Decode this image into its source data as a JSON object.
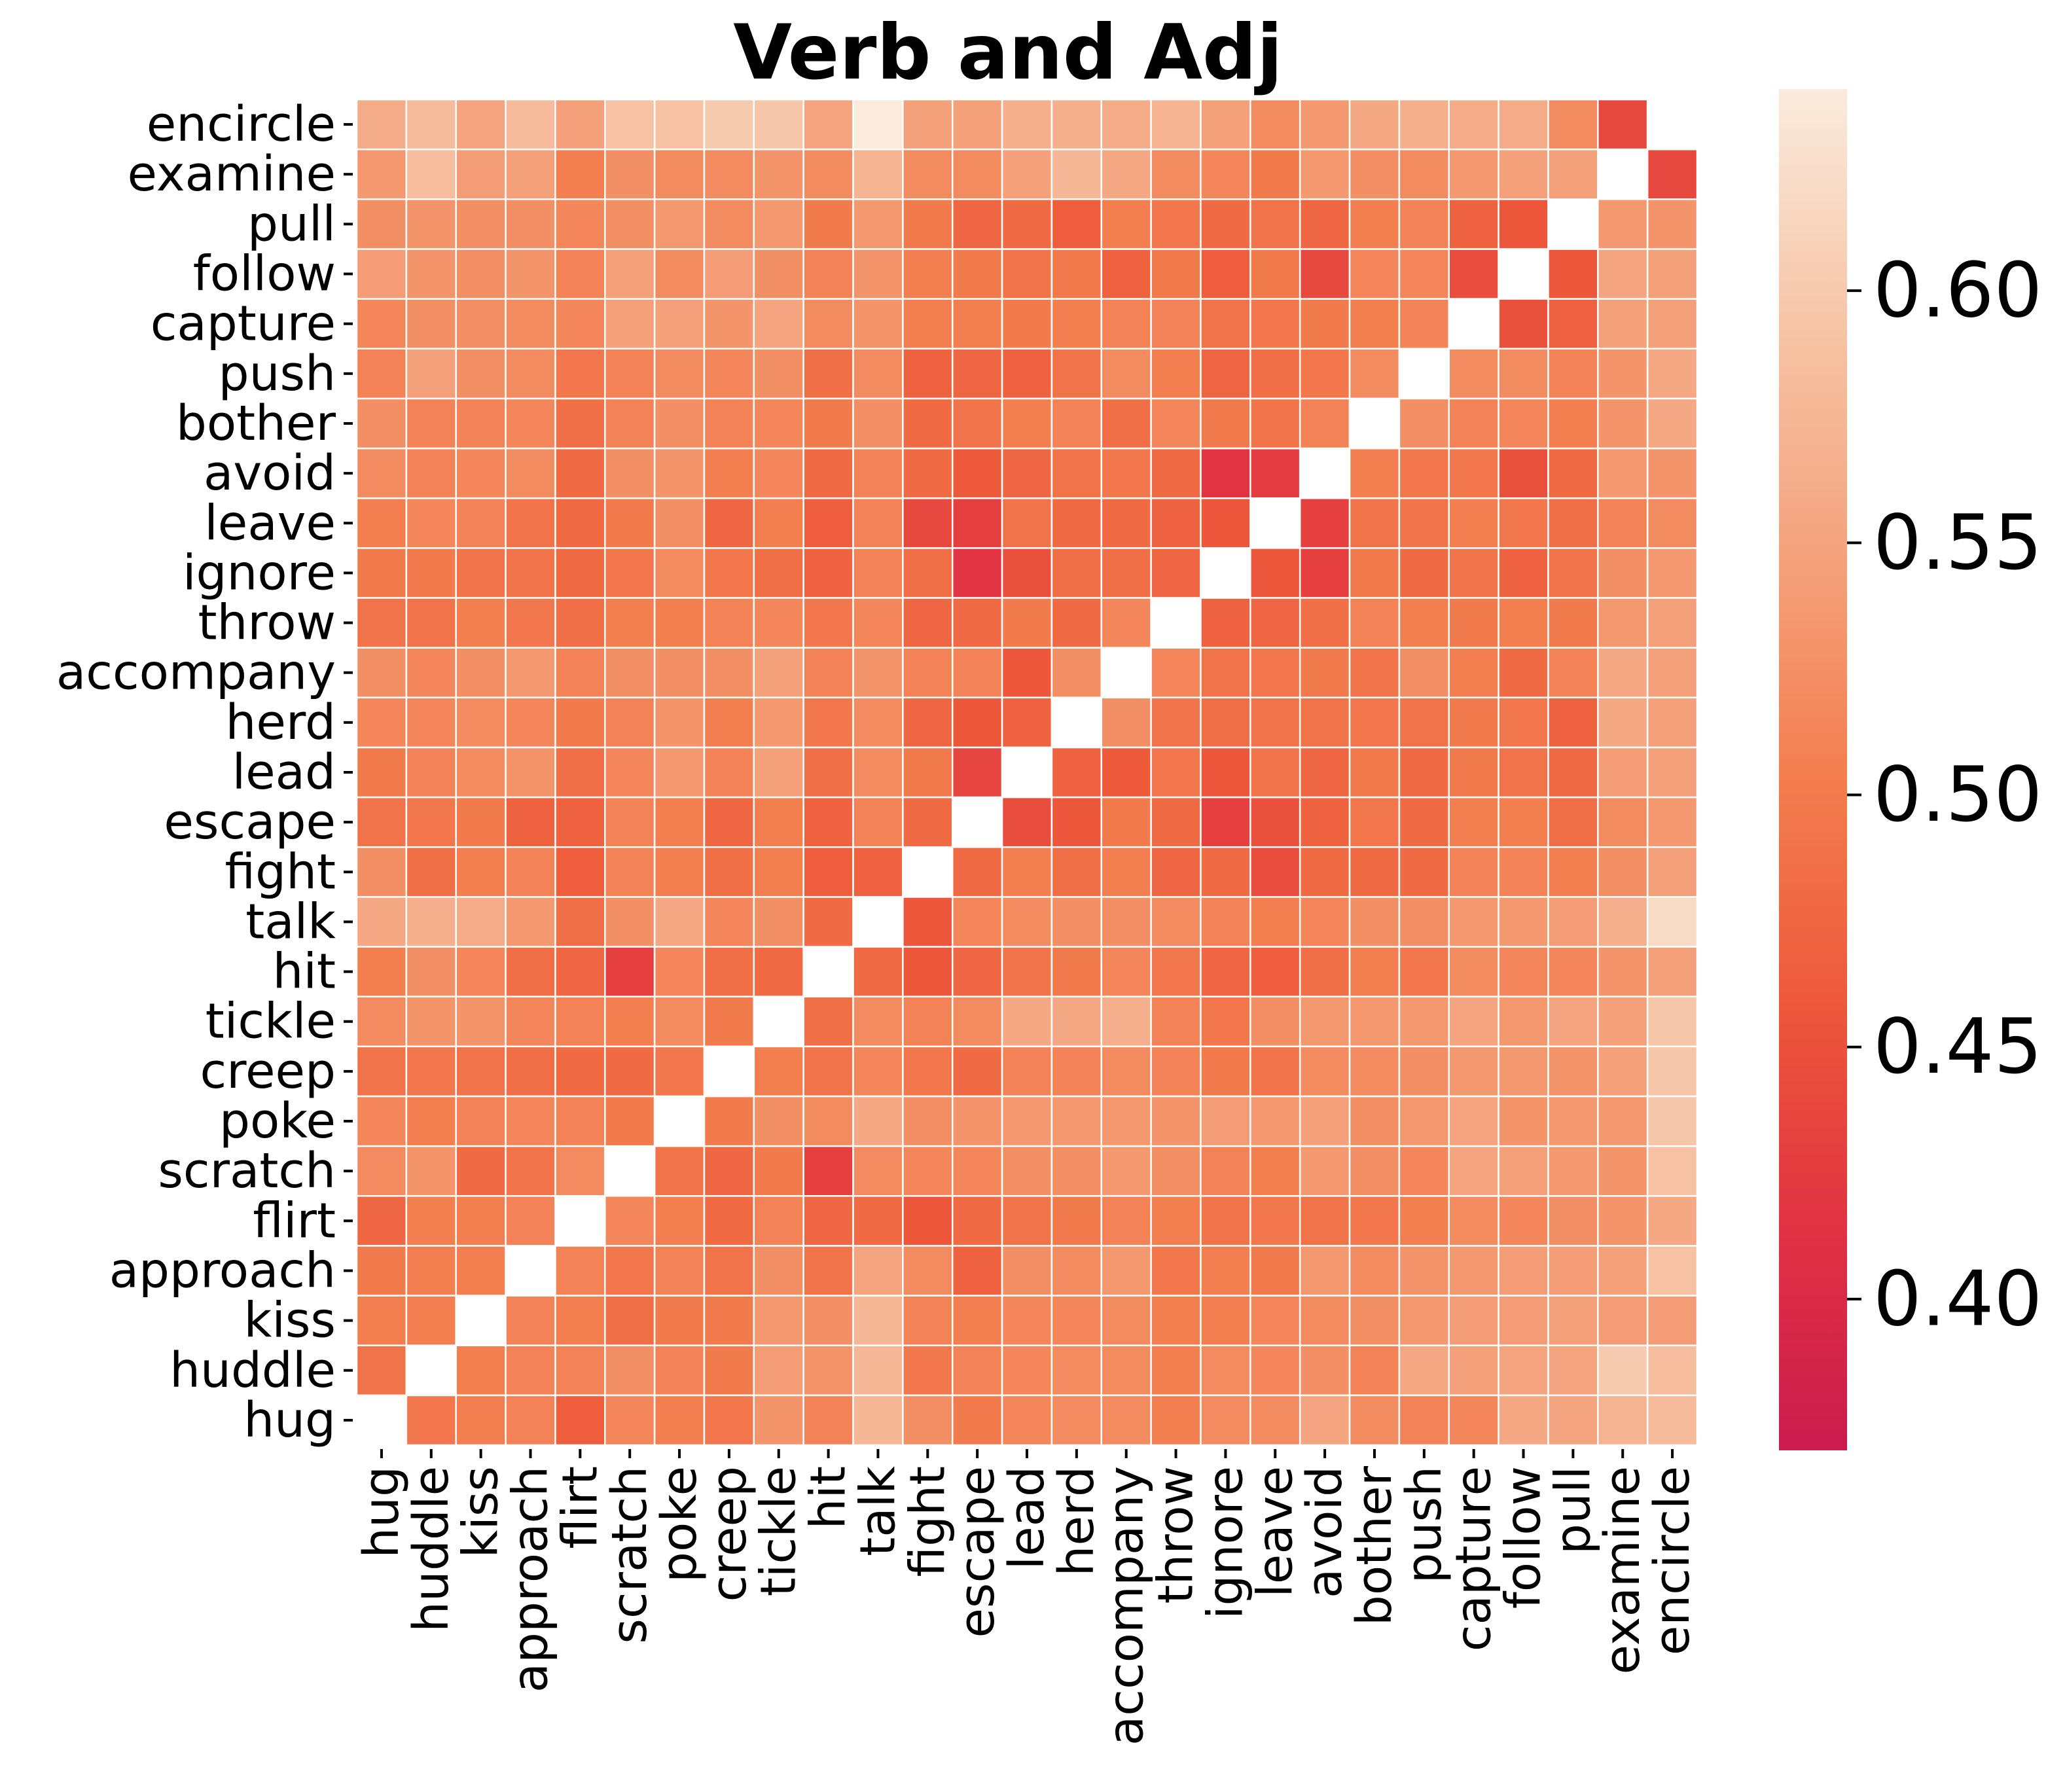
{
  "chart_data": {
    "type": "heatmap",
    "title": "Verb and Adj",
    "xlabel": "",
    "ylabel": "",
    "labels": [
      "hug",
      "huddle",
      "kiss",
      "approach",
      "flirt",
      "scratch",
      "poke",
      "creep",
      "tickle",
      "hit",
      "talk",
      "fight",
      "escape",
      "lead",
      "herd",
      "accompany",
      "throw",
      "ignore",
      "leave",
      "avoid",
      "bother",
      "push",
      "capture",
      "follow",
      "pull",
      "examine",
      "encircle"
    ],
    "note": "matrix rows follow labels order (hug first); the figure draws rows bottom-to-top and columns left-to-right; null = diagonal (blank)",
    "matrix": [
      [
        null,
        0.495,
        0.505,
        0.51,
        0.465,
        0.515,
        0.505,
        0.495,
        0.53,
        0.51,
        0.575,
        0.525,
        0.5,
        0.515,
        0.52,
        0.52,
        0.505,
        0.52,
        0.52,
        0.55,
        0.52,
        0.51,
        0.515,
        0.555,
        0.55,
        0.57,
        0.58
      ],
      [
        0.49,
        null,
        0.505,
        0.51,
        0.51,
        0.525,
        0.51,
        0.5,
        0.54,
        0.53,
        0.575,
        0.495,
        0.51,
        0.515,
        0.52,
        0.52,
        0.505,
        0.52,
        0.515,
        0.525,
        0.51,
        0.555,
        0.545,
        0.55,
        0.55,
        0.6,
        0.585
      ],
      [
        0.505,
        0.505,
        null,
        0.51,
        0.505,
        0.485,
        0.5,
        0.5,
        0.535,
        0.525,
        0.575,
        0.51,
        0.505,
        0.515,
        0.515,
        0.52,
        0.505,
        0.505,
        0.515,
        0.52,
        0.525,
        0.535,
        0.54,
        0.54,
        0.545,
        0.54,
        0.54
      ],
      [
        0.5,
        0.505,
        0.505,
        null,
        0.51,
        0.495,
        0.51,
        0.49,
        0.525,
        0.49,
        0.55,
        0.52,
        0.47,
        0.525,
        0.52,
        0.535,
        0.495,
        0.505,
        0.5,
        0.535,
        0.52,
        0.53,
        0.535,
        0.54,
        0.54,
        0.545,
        0.59
      ],
      [
        0.475,
        0.505,
        0.505,
        0.51,
        null,
        0.515,
        0.505,
        0.48,
        0.51,
        0.475,
        0.48,
        0.455,
        0.48,
        0.49,
        0.5,
        0.51,
        0.505,
        0.49,
        0.495,
        0.49,
        0.495,
        0.505,
        0.52,
        0.515,
        0.525,
        0.53,
        0.555
      ],
      [
        0.52,
        0.53,
        0.48,
        0.49,
        0.52,
        null,
        0.49,
        0.475,
        0.5,
        0.43,
        0.52,
        0.515,
        0.515,
        0.525,
        0.525,
        0.535,
        0.525,
        0.51,
        0.505,
        0.535,
        0.525,
        0.515,
        0.55,
        0.545,
        0.535,
        0.53,
        0.59
      ],
      [
        0.515,
        0.505,
        0.51,
        0.515,
        0.51,
        0.5,
        null,
        0.5,
        0.525,
        0.52,
        0.555,
        0.525,
        0.53,
        0.535,
        0.535,
        0.535,
        0.53,
        0.54,
        0.535,
        0.545,
        0.525,
        0.535,
        0.55,
        0.53,
        0.535,
        0.535,
        0.595
      ],
      [
        0.49,
        0.495,
        0.49,
        0.485,
        0.48,
        0.48,
        0.495,
        null,
        0.505,
        0.49,
        0.515,
        0.495,
        0.48,
        0.51,
        0.51,
        0.52,
        0.51,
        0.5,
        0.49,
        0.52,
        0.52,
        0.525,
        0.535,
        0.535,
        0.53,
        0.545,
        0.595
      ],
      [
        0.52,
        0.53,
        0.53,
        0.515,
        0.51,
        0.505,
        0.52,
        0.5,
        null,
        0.485,
        0.52,
        0.51,
        0.52,
        0.555,
        0.555,
        0.565,
        0.51,
        0.495,
        0.525,
        0.535,
        0.535,
        0.535,
        0.55,
        0.535,
        0.55,
        0.545,
        0.595
      ],
      [
        0.505,
        0.525,
        0.515,
        0.485,
        0.475,
        0.43,
        0.515,
        0.485,
        0.48,
        null,
        0.48,
        0.455,
        0.475,
        0.49,
        0.5,
        0.515,
        0.495,
        0.475,
        0.465,
        0.485,
        0.505,
        0.495,
        0.52,
        0.515,
        0.515,
        0.53,
        0.545
      ],
      [
        0.555,
        0.565,
        0.56,
        0.535,
        0.485,
        0.525,
        0.555,
        0.515,
        0.525,
        0.48,
        null,
        0.455,
        0.515,
        0.52,
        0.525,
        0.525,
        0.52,
        0.51,
        0.505,
        0.515,
        0.525,
        0.525,
        0.535,
        0.535,
        0.54,
        0.565,
        0.62
      ],
      [
        0.525,
        0.485,
        0.505,
        0.51,
        0.465,
        0.51,
        0.505,
        0.485,
        0.505,
        0.465,
        0.47,
        null,
        0.48,
        0.505,
        0.485,
        0.505,
        0.475,
        0.48,
        0.445,
        0.48,
        0.48,
        0.48,
        0.51,
        0.51,
        0.505,
        0.525,
        0.545
      ],
      [
        0.49,
        0.495,
        0.5,
        0.47,
        0.47,
        0.51,
        0.505,
        0.475,
        0.505,
        0.47,
        0.51,
        0.48,
        null,
        0.445,
        0.455,
        0.5,
        0.48,
        0.43,
        0.45,
        0.47,
        0.495,
        0.48,
        0.505,
        0.505,
        0.485,
        0.52,
        0.535
      ],
      [
        0.5,
        0.51,
        0.52,
        0.53,
        0.485,
        0.515,
        0.535,
        0.51,
        0.545,
        0.485,
        0.52,
        0.5,
        0.435,
        null,
        0.47,
        0.46,
        0.495,
        0.455,
        0.49,
        0.475,
        0.5,
        0.48,
        0.5,
        0.49,
        0.48,
        0.54,
        0.545
      ],
      [
        0.515,
        0.515,
        0.52,
        0.515,
        0.5,
        0.51,
        0.53,
        0.505,
        0.535,
        0.495,
        0.52,
        0.475,
        0.455,
        0.47,
        null,
        0.525,
        0.49,
        0.485,
        0.49,
        0.49,
        0.495,
        0.49,
        0.5,
        0.495,
        0.47,
        0.555,
        0.545
      ],
      [
        0.525,
        0.515,
        0.525,
        0.535,
        0.51,
        0.525,
        0.525,
        0.525,
        0.545,
        0.51,
        0.53,
        0.51,
        0.51,
        0.455,
        0.525,
        null,
        0.515,
        0.49,
        0.495,
        0.5,
        0.49,
        0.525,
        0.505,
        0.48,
        0.51,
        0.555,
        0.545
      ],
      [
        0.49,
        0.49,
        0.505,
        0.495,
        0.485,
        0.505,
        0.505,
        0.51,
        0.515,
        0.495,
        0.515,
        0.475,
        0.48,
        0.5,
        0.48,
        0.515,
        null,
        0.47,
        0.475,
        0.485,
        0.51,
        0.505,
        0.5,
        0.505,
        0.5,
        0.535,
        0.545
      ],
      [
        0.5,
        0.5,
        0.49,
        0.49,
        0.48,
        0.495,
        0.52,
        0.495,
        0.485,
        0.47,
        0.51,
        0.485,
        0.415,
        0.45,
        0.485,
        0.485,
        0.475,
        null,
        0.455,
        0.43,
        0.5,
        0.48,
        0.49,
        0.47,
        0.49,
        0.525,
        0.535
      ],
      [
        0.505,
        0.515,
        0.51,
        0.49,
        0.48,
        0.5,
        0.525,
        0.475,
        0.505,
        0.465,
        0.51,
        0.44,
        0.43,
        0.49,
        0.48,
        0.48,
        0.47,
        0.455,
        null,
        0.43,
        0.49,
        0.49,
        0.505,
        0.495,
        0.485,
        0.51,
        0.52
      ],
      [
        0.52,
        0.51,
        0.515,
        0.52,
        0.48,
        0.525,
        0.53,
        0.505,
        0.515,
        0.48,
        0.51,
        0.48,
        0.46,
        0.475,
        0.49,
        0.495,
        0.48,
        0.415,
        0.425,
        null,
        0.505,
        0.495,
        0.495,
        0.45,
        0.48,
        0.535,
        0.53
      ],
      [
        0.525,
        0.51,
        0.51,
        0.515,
        0.485,
        0.51,
        0.525,
        0.51,
        0.515,
        0.5,
        0.525,
        0.48,
        0.49,
        0.505,
        0.51,
        0.485,
        0.515,
        0.5,
        0.49,
        0.51,
        null,
        0.525,
        0.51,
        0.515,
        0.505,
        0.53,
        0.555
      ],
      [
        0.51,
        0.545,
        0.525,
        0.52,
        0.495,
        0.51,
        0.52,
        0.515,
        0.525,
        0.485,
        0.52,
        0.47,
        0.475,
        0.47,
        0.49,
        0.52,
        0.505,
        0.475,
        0.485,
        0.495,
        0.52,
        null,
        0.52,
        0.52,
        0.51,
        0.53,
        0.555
      ],
      [
        0.515,
        0.525,
        0.525,
        0.52,
        0.515,
        0.545,
        0.545,
        0.53,
        0.55,
        0.52,
        0.53,
        0.505,
        0.505,
        0.5,
        0.505,
        0.51,
        0.51,
        0.49,
        0.495,
        0.5,
        0.505,
        0.51,
        null,
        0.45,
        0.47,
        0.545,
        0.545
      ],
      [
        0.54,
        0.53,
        0.525,
        0.53,
        0.51,
        0.545,
        0.52,
        0.54,
        0.525,
        0.51,
        0.53,
        0.505,
        0.5,
        0.49,
        0.5,
        0.47,
        0.5,
        0.465,
        0.5,
        0.44,
        0.515,
        0.515,
        0.445,
        null,
        0.455,
        0.55,
        0.545
      ],
      [
        0.525,
        0.53,
        0.525,
        0.525,
        0.515,
        0.525,
        0.535,
        0.52,
        0.535,
        0.5,
        0.535,
        0.5,
        0.475,
        0.48,
        0.465,
        0.505,
        0.495,
        0.48,
        0.49,
        0.475,
        0.505,
        0.51,
        0.47,
        0.455,
        null,
        0.535,
        0.53
      ],
      [
        0.535,
        0.585,
        0.54,
        0.545,
        0.505,
        0.525,
        0.52,
        0.52,
        0.53,
        0.52,
        0.57,
        0.52,
        0.52,
        0.545,
        0.575,
        0.555,
        0.52,
        0.515,
        0.5,
        0.535,
        0.525,
        0.52,
        0.535,
        0.545,
        0.545,
        null,
        0.44
      ],
      [
        0.56,
        0.58,
        0.55,
        0.58,
        0.545,
        0.59,
        0.59,
        0.6,
        0.595,
        0.55,
        0.64,
        0.545,
        0.545,
        0.565,
        0.565,
        0.56,
        0.57,
        0.545,
        0.52,
        0.535,
        0.555,
        0.565,
        0.56,
        0.56,
        0.52,
        0.44,
        null
      ]
    ],
    "vmin": 0.37,
    "vmax": 0.64,
    "colorbar": {
      "ticks": [
        0.4,
        0.45,
        0.5,
        0.55,
        0.6
      ],
      "tick_labels": [
        "0.40",
        "0.45",
        "0.50",
        "0.55",
        "0.60"
      ]
    },
    "colormap": [
      "#cb1b4f",
      "#e13342",
      "#ed5a3a",
      "#f37f51",
      "#f4a47f",
      "#f6c6a8",
      "#faebdd"
    ],
    "grid": "white lines between cells"
  }
}
